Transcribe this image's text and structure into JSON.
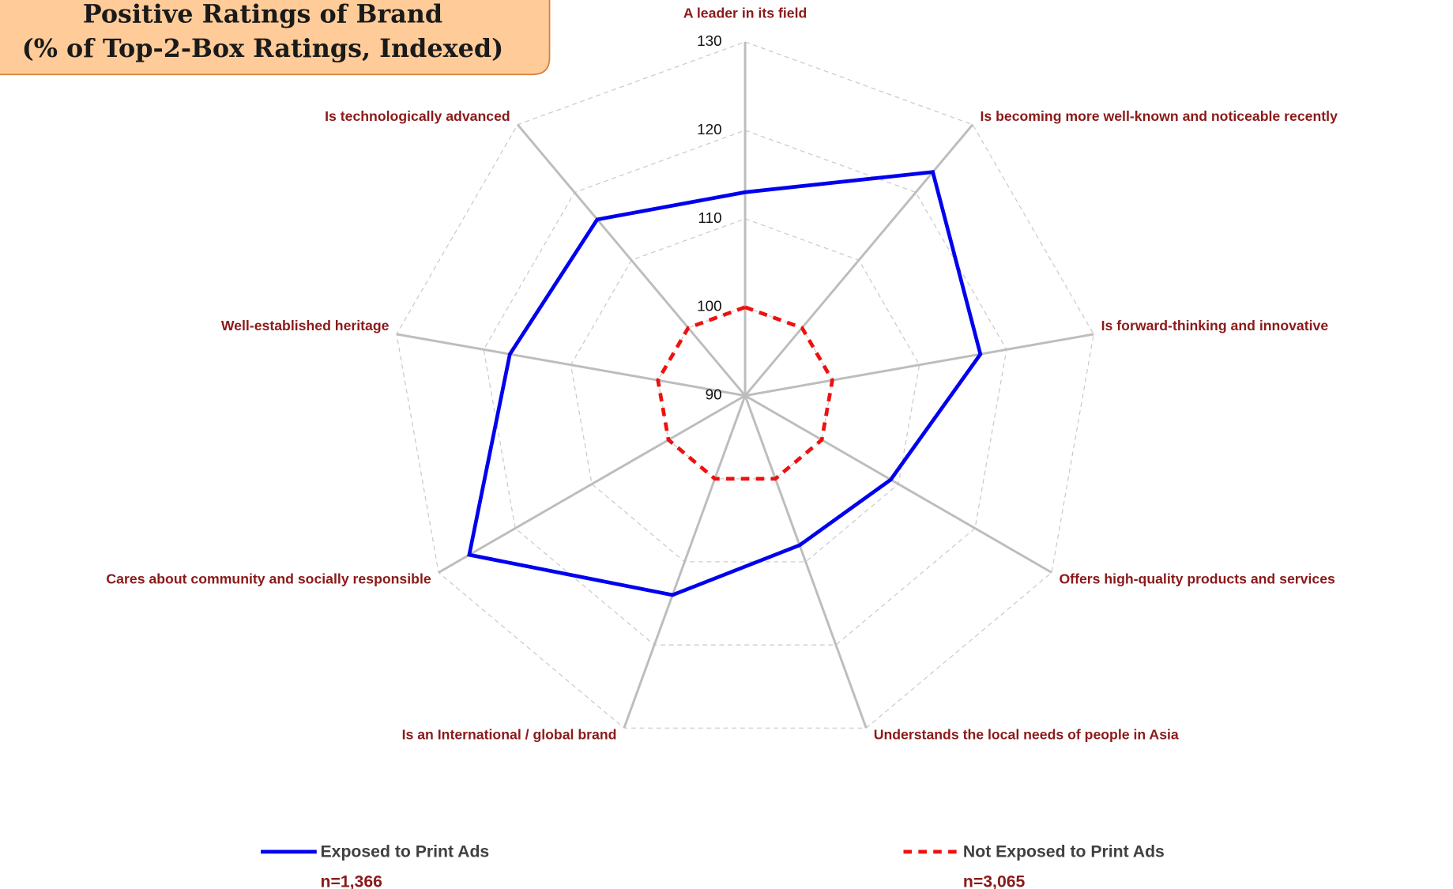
{
  "chart_data": {
    "type": "radar",
    "title": [
      "Positive Ratings of Brand",
      "(% of Top-2-Box Ratings, Indexed)"
    ],
    "categories": [
      "A leader in its field",
      "Is becoming more well-known and noticeable recently",
      "Is forward-thinking and innovative",
      "Offers high-quality products and services",
      "Understands the local needs of people in Asia",
      "Is an International / global brand",
      "Cares about community and socially responsible",
      "Well-established heritage",
      "Is technologically advanced"
    ],
    "series": [
      {
        "name": "Exposed to Print Ads",
        "color": "#0000ee",
        "dashed": false,
        "sample_size": "n=1,366",
        "values": [
          113,
          123,
          117,
          109,
          108,
          114,
          126,
          117,
          116
        ]
      },
      {
        "name": "Not Exposed to Print Ads",
        "color": "#ee1111",
        "dashed": true,
        "sample_size": "n=3,065",
        "values": [
          100,
          100,
          100,
          100,
          100,
          100,
          100,
          100,
          100
        ]
      }
    ],
    "ylim": [
      90,
      130
    ],
    "yticks": [
      90,
      100,
      110,
      120,
      130
    ],
    "grid": true
  }
}
